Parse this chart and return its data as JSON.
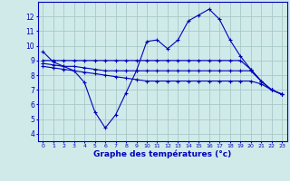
{
  "title": "Graphe des températures (°c)",
  "bg_color": "#d0eaea",
  "grid_color": "#a8c8c8",
  "line_color": "#0000bb",
  "x_values": [
    0,
    1,
    2,
    3,
    4,
    5,
    6,
    7,
    8,
    9,
    10,
    11,
    12,
    13,
    14,
    15,
    16,
    17,
    18,
    19,
    20,
    21,
    22,
    23
  ],
  "series_main": [
    9.6,
    8.9,
    8.6,
    8.3,
    7.5,
    5.5,
    4.4,
    5.3,
    6.8,
    8.3,
    10.3,
    10.4,
    9.8,
    10.4,
    11.7,
    12.1,
    12.5,
    11.8,
    10.4,
    9.3,
    8.4,
    7.6,
    7.0,
    6.7
  ],
  "series_flat1": [
    9.0,
    9.0,
    9.0,
    9.0,
    9.0,
    9.0,
    9.0,
    9.0,
    9.0,
    9.0,
    9.0,
    9.0,
    9.0,
    9.0,
    9.0,
    9.0,
    9.0,
    9.0,
    9.0,
    9.0,
    8.4,
    7.6,
    7.0,
    6.7
  ],
  "series_flat2": [
    8.8,
    8.7,
    8.6,
    8.6,
    8.5,
    8.4,
    8.3,
    8.3,
    8.3,
    8.3,
    8.3,
    8.3,
    8.3,
    8.3,
    8.3,
    8.3,
    8.3,
    8.3,
    8.3,
    8.3,
    8.3,
    7.6,
    7.0,
    6.7
  ],
  "series_flat3": [
    8.6,
    8.5,
    8.4,
    8.3,
    8.2,
    8.1,
    8.0,
    7.9,
    7.8,
    7.7,
    7.6,
    7.6,
    7.6,
    7.6,
    7.6,
    7.6,
    7.6,
    7.6,
    7.6,
    7.6,
    7.6,
    7.4,
    7.0,
    6.7
  ],
  "yticks": [
    4,
    5,
    6,
    7,
    8,
    9,
    10,
    11,
    12
  ],
  "ylim_min": 3.5,
  "ylim_max": 13.0
}
